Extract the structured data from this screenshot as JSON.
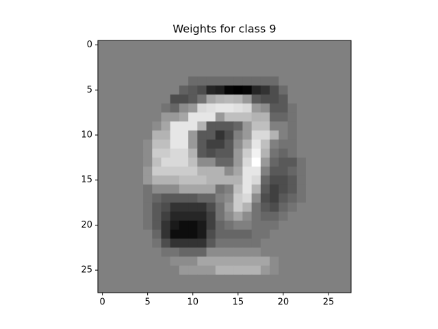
{
  "chart_data": {
    "type": "heatmap",
    "title": "Weights for class 9",
    "cmap": "gray",
    "xlim": [
      -0.5,
      27.5
    ],
    "ylim": [
      27.5,
      -0.5
    ],
    "xticks": [
      0,
      5,
      10,
      15,
      20,
      25
    ],
    "yticks": [
      0,
      5,
      10,
      15,
      20,
      25
    ],
    "z": [
      [
        0.5,
        0.5,
        0.5,
        0.5,
        0.5,
        0.5,
        0.5,
        0.5,
        0.5,
        0.5,
        0.5,
        0.5,
        0.5,
        0.5,
        0.5,
        0.5,
        0.5,
        0.5,
        0.5,
        0.5,
        0.5,
        0.5,
        0.5,
        0.5,
        0.5,
        0.5,
        0.5,
        0.5
      ],
      [
        0.5,
        0.5,
        0.5,
        0.5,
        0.5,
        0.5,
        0.5,
        0.5,
        0.5,
        0.5,
        0.5,
        0.5,
        0.5,
        0.5,
        0.5,
        0.5,
        0.5,
        0.5,
        0.5,
        0.5,
        0.5,
        0.5,
        0.5,
        0.5,
        0.5,
        0.5,
        0.5,
        0.5
      ],
      [
        0.5,
        0.5,
        0.5,
        0.5,
        0.5,
        0.5,
        0.5,
        0.5,
        0.5,
        0.5,
        0.5,
        0.5,
        0.5,
        0.5,
        0.5,
        0.5,
        0.5,
        0.5,
        0.5,
        0.5,
        0.5,
        0.5,
        0.5,
        0.5,
        0.5,
        0.5,
        0.5,
        0.5
      ],
      [
        0.5,
        0.5,
        0.5,
        0.5,
        0.5,
        0.5,
        0.5,
        0.5,
        0.5,
        0.5,
        0.5,
        0.5,
        0.5,
        0.5,
        0.5,
        0.5,
        0.5,
        0.5,
        0.5,
        0.5,
        0.5,
        0.5,
        0.5,
        0.5,
        0.5,
        0.5,
        0.5,
        0.5
      ],
      [
        0.5,
        0.5,
        0.5,
        0.5,
        0.5,
        0.5,
        0.5,
        0.5,
        0.5,
        0.5,
        0.42,
        0.42,
        0.42,
        0.42,
        0.42,
        0.42,
        0.42,
        0.42,
        0.42,
        0.42,
        0.5,
        0.5,
        0.5,
        0.5,
        0.5,
        0.5,
        0.5,
        0.5
      ],
      [
        0.5,
        0.5,
        0.5,
        0.5,
        0.5,
        0.5,
        0.5,
        0.5,
        0.5,
        0.38,
        0.35,
        0.3,
        0.15,
        0.12,
        0.02,
        0,
        0.02,
        0.15,
        0.2,
        0.3,
        0.42,
        0.5,
        0.5,
        0.5,
        0.5,
        0.5,
        0.5,
        0.5
      ],
      [
        0.5,
        0.5,
        0.5,
        0.5,
        0.5,
        0.5,
        0.5,
        0.5,
        0.3,
        0.3,
        0.35,
        0.45,
        0.65,
        0.7,
        0.72,
        0.7,
        0.6,
        0.35,
        0.3,
        0.3,
        0.35,
        0.5,
        0.5,
        0.5,
        0.5,
        0.5,
        0.5,
        0.5
      ],
      [
        0.5,
        0.5,
        0.5,
        0.5,
        0.5,
        0.5,
        0.5,
        0.45,
        0.4,
        0.55,
        0.6,
        0.85,
        0.88,
        0.9,
        0.9,
        0.88,
        0.85,
        0.6,
        0.55,
        0.35,
        0.35,
        0.45,
        0.5,
        0.5,
        0.5,
        0.5,
        0.5,
        0.5
      ],
      [
        0.5,
        0.5,
        0.5,
        0.5,
        0.5,
        0.5,
        0.5,
        0.6,
        0.6,
        0.65,
        0.9,
        0.9,
        0.9,
        0.6,
        0.75,
        0.75,
        0.75,
        0.7,
        0.7,
        0.4,
        0.4,
        0.45,
        0.5,
        0.5,
        0.5,
        0.5,
        0.5,
        0.5
      ],
      [
        0.5,
        0.5,
        0.5,
        0.5,
        0.5,
        0.5,
        0.55,
        0.65,
        0.9,
        0.9,
        0.9,
        0.7,
        0.35,
        0.35,
        0.35,
        0.4,
        0.6,
        0.75,
        0.75,
        0.5,
        0.5,
        0.45,
        0.5,
        0.5,
        0.5,
        0.5,
        0.5,
        0.5
      ],
      [
        0.5,
        0.5,
        0.5,
        0.5,
        0.5,
        0.5,
        0.7,
        0.7,
        0.9,
        0.9,
        0.6,
        0.35,
        0.35,
        0.2,
        0.3,
        0.5,
        0.6,
        0.85,
        0.85,
        0.7,
        0.5,
        0.45,
        0.5,
        0.5,
        0.5,
        0.5,
        0.5,
        0.5
      ],
      [
        0.5,
        0.5,
        0.5,
        0.5,
        0.5,
        0.55,
        0.75,
        0.75,
        0.9,
        0.9,
        0.6,
        0.35,
        0.25,
        0.25,
        0.35,
        0.55,
        0.7,
        0.9,
        0.75,
        0.5,
        0.45,
        0.45,
        0.5,
        0.5,
        0.5,
        0.5,
        0.5,
        0.5
      ],
      [
        0.5,
        0.5,
        0.5,
        0.5,
        0.5,
        0.55,
        0.8,
        0.8,
        0.85,
        0.85,
        0.7,
        0.35,
        0.3,
        0.35,
        0.35,
        0.6,
        0.8,
        0.95,
        0.7,
        0.45,
        0.4,
        0.45,
        0.5,
        0.5,
        0.5,
        0.5,
        0.5,
        0.5
      ],
      [
        0.5,
        0.5,
        0.5,
        0.5,
        0.5,
        0.55,
        0.75,
        0.85,
        0.85,
        0.85,
        0.75,
        0.55,
        0.55,
        0.4,
        0.4,
        0.6,
        0.85,
        1,
        0.6,
        0.4,
        0.35,
        0.35,
        0.45,
        0.5,
        0.5,
        0.5,
        0.5,
        0.5
      ],
      [
        0.5,
        0.5,
        0.5,
        0.5,
        0.5,
        0.6,
        0.8,
        0.8,
        0.8,
        0.8,
        0.8,
        0.7,
        0.7,
        0.7,
        0.55,
        0.65,
        0.9,
        0.9,
        0.5,
        0.35,
        0.35,
        0.4,
        0.45,
        0.5,
        0.5,
        0.5,
        0.5,
        0.5
      ],
      [
        0.5,
        0.5,
        0.5,
        0.5,
        0.5,
        0.6,
        0.7,
        0.7,
        0.7,
        0.75,
        0.75,
        0.75,
        0.7,
        0.7,
        0.7,
        0.7,
        0.9,
        0.85,
        0.4,
        0.3,
        0.3,
        0.35,
        0.45,
        0.5,
        0.5,
        0.5,
        0.5,
        0.5
      ],
      [
        0.5,
        0.5,
        0.5,
        0.5,
        0.5,
        0.45,
        0.55,
        0.55,
        0.55,
        0.65,
        0.65,
        0.65,
        0.65,
        0.45,
        0.5,
        0.75,
        0.9,
        0.7,
        0.35,
        0.25,
        0.3,
        0.35,
        0.45,
        0.5,
        0.5,
        0.5,
        0.5,
        0.5
      ],
      [
        0.5,
        0.5,
        0.5,
        0.5,
        0.5,
        0.45,
        0.4,
        0.35,
        0.35,
        0.35,
        0.35,
        0.4,
        0.4,
        0.5,
        0.55,
        0.8,
        0.85,
        0.55,
        0.3,
        0.25,
        0.35,
        0.4,
        0.45,
        0.5,
        0.5,
        0.5,
        0.5,
        0.5
      ],
      [
        0.5,
        0.5,
        0.5,
        0.5,
        0.5,
        0.45,
        0.35,
        0.3,
        0.2,
        0.2,
        0.2,
        0.2,
        0.3,
        0.45,
        0.6,
        0.8,
        0.7,
        0.45,
        0.35,
        0.3,
        0.4,
        0.45,
        0.5,
        0.5,
        0.5,
        0.5,
        0.5,
        0.5
      ],
      [
        0.5,
        0.5,
        0.5,
        0.5,
        0.5,
        0.45,
        0.35,
        0.25,
        0.15,
        0.15,
        0.15,
        0.15,
        0.25,
        0.45,
        0.55,
        0.65,
        0.55,
        0.45,
        0.4,
        0.4,
        0.45,
        0.5,
        0.5,
        0.5,
        0.5,
        0.5,
        0.5,
        0.5
      ],
      [
        0.5,
        0.5,
        0.5,
        0.5,
        0.5,
        0.45,
        0.35,
        0.2,
        0.1,
        0.05,
        0.05,
        0.1,
        0.25,
        0.4,
        0.45,
        0.5,
        0.5,
        0.45,
        0.45,
        0.45,
        0.5,
        0.5,
        0.5,
        0.5,
        0.5,
        0.5,
        0.5,
        0.5
      ],
      [
        0.5,
        0.5,
        0.5,
        0.5,
        0.5,
        0.5,
        0.4,
        0.2,
        0.05,
        0.05,
        0.05,
        0.1,
        0.3,
        0.4,
        0.4,
        0.4,
        0.4,
        0.45,
        0.45,
        0.5,
        0.5,
        0.5,
        0.5,
        0.5,
        0.5,
        0.5,
        0.5,
        0.5
      ],
      [
        0.5,
        0.5,
        0.5,
        0.5,
        0.5,
        0.5,
        0.45,
        0.3,
        0.2,
        0.2,
        0.2,
        0.2,
        0.35,
        0.45,
        0.45,
        0.45,
        0.45,
        0.45,
        0.5,
        0.5,
        0.5,
        0.5,
        0.5,
        0.5,
        0.5,
        0.5,
        0.5,
        0.5
      ],
      [
        0.5,
        0.5,
        0.5,
        0.5,
        0.5,
        0.5,
        0.5,
        0.45,
        0.45,
        0.4,
        0.4,
        0.4,
        0.55,
        0.55,
        0.55,
        0.55,
        0.55,
        0.55,
        0.5,
        0.5,
        0.5,
        0.5,
        0.5,
        0.5,
        0.5,
        0.5,
        0.5,
        0.5
      ],
      [
        0.5,
        0.5,
        0.5,
        0.5,
        0.5,
        0.5,
        0.5,
        0.5,
        0.55,
        0.55,
        0.55,
        0.65,
        0.65,
        0.65,
        0.65,
        0.65,
        0.65,
        0.65,
        0.65,
        0.55,
        0.5,
        0.5,
        0.5,
        0.5,
        0.5,
        0.5,
        0.5,
        0.5
      ],
      [
        0.5,
        0.5,
        0.5,
        0.5,
        0.5,
        0.5,
        0.5,
        0.5,
        0.5,
        0.6,
        0.6,
        0.6,
        0.6,
        0.7,
        0.7,
        0.7,
        0.7,
        0.7,
        0.6,
        0.55,
        0.5,
        0.5,
        0.5,
        0.5,
        0.5,
        0.5,
        0.5,
        0.5
      ],
      [
        0.5,
        0.5,
        0.5,
        0.5,
        0.5,
        0.5,
        0.5,
        0.5,
        0.5,
        0.5,
        0.5,
        0.5,
        0.5,
        0.5,
        0.5,
        0.5,
        0.5,
        0.5,
        0.5,
        0.5,
        0.5,
        0.5,
        0.5,
        0.5,
        0.5,
        0.5,
        0.5,
        0.5
      ],
      [
        0.5,
        0.5,
        0.5,
        0.5,
        0.5,
        0.5,
        0.5,
        0.5,
        0.5,
        0.5,
        0.5,
        0.5,
        0.5,
        0.5,
        0.5,
        0.5,
        0.5,
        0.5,
        0.5,
        0.5,
        0.5,
        0.5,
        0.5,
        0.5,
        0.5,
        0.5,
        0.5,
        0.5
      ]
    ]
  }
}
